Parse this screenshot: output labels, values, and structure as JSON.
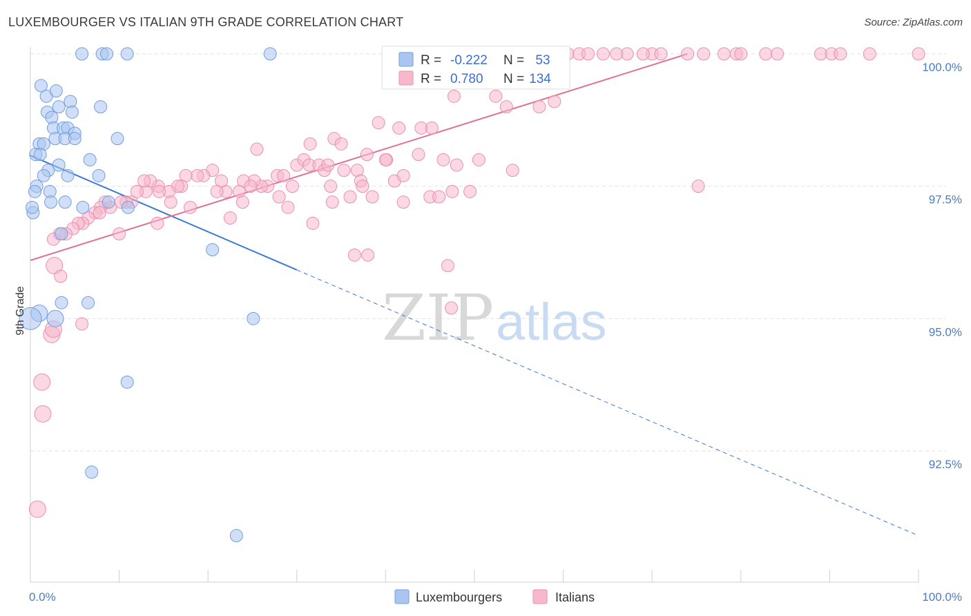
{
  "title": "LUXEMBOURGER VS ITALIAN 9TH GRADE CORRELATION CHART",
  "source": "Source: ZipAtlas.com",
  "watermark": {
    "zip": "ZIP",
    "atlas": "atlas"
  },
  "colors": {
    "luxembourgers_fill": "#a9c5f0",
    "luxembourgers_stroke": "#6f9ee0",
    "luxembourgers_line": "#3b78d6",
    "italians_fill": "#f7b8cc",
    "italians_stroke": "#eb8fae",
    "italians_line": "#e0709a",
    "tick_label": "#4a7cc7"
  },
  "stats_legend": {
    "r_label": "R =",
    "n_label": "N =",
    "rows": [
      {
        "series": "Luxembourgers",
        "r": "-0.222",
        "n": "53"
      },
      {
        "series": "Italians",
        "r": "0.780",
        "n": "134"
      }
    ]
  },
  "chart_data": {
    "type": "scatter",
    "title": "LUXEMBOURGER VS ITALIAN 9TH GRADE CORRELATION CHART",
    "xlabel": "",
    "ylabel": "9th Grade",
    "xlim": [
      0,
      100
    ],
    "ylim": [
      90.7,
      100.2
    ],
    "x_tick_labels": [
      "0.0%",
      "100.0%"
    ],
    "y_ticks": [
      92.5,
      95.0,
      97.5,
      100.0
    ],
    "y_tick_labels": [
      "92.5%",
      "95.0%",
      "97.5%",
      "100.0%"
    ],
    "grid": "horizontal dashed",
    "legend_placement": "bottom",
    "series": [
      {
        "name": "Luxembourgers",
        "points": [
          [
            5.8,
            100.0
          ],
          [
            8.1,
            100.0
          ],
          [
            8.6,
            100.0
          ],
          [
            10.9,
            100.0
          ],
          [
            27.0,
            100.0
          ],
          [
            1.2,
            99.4
          ],
          [
            1.8,
            99.2
          ],
          [
            3.2,
            99.0
          ],
          [
            4.5,
            99.1
          ],
          [
            4.7,
            98.9
          ],
          [
            1.9,
            98.9
          ],
          [
            2.4,
            98.8
          ],
          [
            2.6,
            98.6
          ],
          [
            3.7,
            98.6
          ],
          [
            4.2,
            98.6
          ],
          [
            5.0,
            98.5
          ],
          [
            1.0,
            98.3
          ],
          [
            1.5,
            98.3
          ],
          [
            2.8,
            98.4
          ],
          [
            3.9,
            98.4
          ],
          [
            5.0,
            98.4
          ],
          [
            7.9,
            99.0
          ],
          [
            9.8,
            98.4
          ],
          [
            0.6,
            98.1
          ],
          [
            1.1,
            98.1
          ],
          [
            6.7,
            98.0
          ],
          [
            3.2,
            97.9
          ],
          [
            2.0,
            97.8
          ],
          [
            1.5,
            97.7
          ],
          [
            4.2,
            97.7
          ],
          [
            7.7,
            97.7
          ],
          [
            0.7,
            97.5
          ],
          [
            2.2,
            97.4
          ],
          [
            0.5,
            97.4
          ],
          [
            3.9,
            97.2
          ],
          [
            2.3,
            97.2
          ],
          [
            5.9,
            97.1
          ],
          [
            0.3,
            97.0
          ],
          [
            0.2,
            97.1
          ],
          [
            8.8,
            97.2
          ],
          [
            3.5,
            96.6
          ],
          [
            20.5,
            96.3
          ],
          [
            3.5,
            95.3
          ],
          [
            6.5,
            95.3
          ],
          [
            1.0,
            95.1
          ],
          [
            0.0,
            95.0
          ],
          [
            2.8,
            95.0
          ],
          [
            25.1,
            95.0
          ],
          [
            10.9,
            93.8
          ],
          [
            6.9,
            92.1
          ],
          [
            23.2,
            90.9
          ],
          [
            11.0,
            97.1
          ],
          [
            2.9,
            99.3
          ]
        ]
      },
      {
        "name": "Italians",
        "points": [
          [
            43.5,
            100.0
          ],
          [
            49.2,
            100.0
          ],
          [
            50.0,
            100.0
          ],
          [
            53.2,
            100.0
          ],
          [
            55.3,
            100.0
          ],
          [
            58.3,
            100.0
          ],
          [
            59.2,
            100.0
          ],
          [
            60.5,
            100.0
          ],
          [
            61.8,
            100.0
          ],
          [
            64.5,
            100.0
          ],
          [
            67.2,
            100.0
          ],
          [
            70.0,
            100.0
          ],
          [
            71.0,
            100.0
          ],
          [
            74.0,
            100.0
          ],
          [
            75.8,
            100.0
          ],
          [
            78.1,
            100.0
          ],
          [
            79.5,
            100.0
          ],
          [
            80.0,
            100.0
          ],
          [
            82.8,
            100.0
          ],
          [
            84.1,
            100.0
          ],
          [
            89.0,
            100.0
          ],
          [
            90.2,
            100.0
          ],
          [
            91.2,
            100.0
          ],
          [
            94.5,
            100.0
          ],
          [
            100.0,
            100.0
          ],
          [
            50.5,
            100.0
          ],
          [
            56.2,
            100.0
          ],
          [
            62.8,
            100.0
          ],
          [
            66.0,
            100.0
          ],
          [
            69.0,
            100.0
          ],
          [
            47.7,
            99.2
          ],
          [
            52.4,
            99.2
          ],
          [
            53.6,
            99.0
          ],
          [
            59.0,
            99.1
          ],
          [
            57.3,
            99.0
          ],
          [
            39.2,
            98.7
          ],
          [
            41.5,
            98.6
          ],
          [
            44.0,
            98.6
          ],
          [
            45.2,
            98.6
          ],
          [
            34.2,
            98.4
          ],
          [
            35.0,
            98.3
          ],
          [
            31.5,
            98.3
          ],
          [
            25.5,
            98.2
          ],
          [
            37.9,
            98.1
          ],
          [
            40.1,
            98.0
          ],
          [
            43.7,
            98.1
          ],
          [
            46.5,
            98.0
          ],
          [
            48.0,
            97.9
          ],
          [
            54.3,
            97.8
          ],
          [
            75.2,
            97.5
          ],
          [
            30.0,
            97.9
          ],
          [
            30.8,
            98.0
          ],
          [
            31.4,
            97.9
          ],
          [
            32.5,
            97.9
          ],
          [
            33.1,
            97.8
          ],
          [
            33.8,
            97.5
          ],
          [
            35.3,
            97.8
          ],
          [
            36.8,
            97.8
          ],
          [
            37.2,
            97.6
          ],
          [
            41.0,
            97.6
          ],
          [
            42.0,
            97.7
          ],
          [
            27.8,
            97.7
          ],
          [
            28.5,
            97.7
          ],
          [
            26.7,
            97.5
          ],
          [
            26.0,
            97.5
          ],
          [
            25.2,
            97.6
          ],
          [
            24.0,
            97.6
          ],
          [
            23.5,
            97.4
          ],
          [
            22.0,
            97.4
          ],
          [
            20.5,
            97.8
          ],
          [
            21.5,
            97.6
          ],
          [
            19.5,
            97.7
          ],
          [
            18.8,
            97.7
          ],
          [
            17.5,
            97.7
          ],
          [
            17.0,
            97.5
          ],
          [
            16.6,
            97.5
          ],
          [
            15.6,
            97.4
          ],
          [
            14.4,
            97.5
          ],
          [
            14.5,
            97.4
          ],
          [
            13.5,
            97.6
          ],
          [
            13.0,
            97.4
          ],
          [
            12.8,
            97.6
          ],
          [
            12.0,
            97.4
          ],
          [
            11.4,
            97.2
          ],
          [
            10.8,
            97.2
          ],
          [
            10.2,
            97.2
          ],
          [
            9.0,
            97.1
          ],
          [
            8.4,
            97.2
          ],
          [
            7.9,
            97.1
          ],
          [
            7.3,
            97.0
          ],
          [
            6.5,
            96.9
          ],
          [
            5.9,
            96.8
          ],
          [
            5.4,
            96.8
          ],
          [
            4.8,
            96.7
          ],
          [
            4.0,
            96.6
          ],
          [
            3.3,
            96.6
          ],
          [
            2.6,
            96.5
          ],
          [
            7.8,
            97.0
          ],
          [
            10.0,
            96.6
          ],
          [
            14.3,
            96.8
          ],
          [
            15.8,
            97.2
          ],
          [
            18.0,
            97.1
          ],
          [
            21.0,
            97.4
          ],
          [
            22.5,
            96.9
          ],
          [
            23.9,
            97.2
          ],
          [
            24.8,
            97.5
          ],
          [
            28.0,
            97.3
          ],
          [
            29.0,
            97.1
          ],
          [
            31.8,
            96.8
          ],
          [
            34.0,
            97.2
          ],
          [
            36.0,
            97.3
          ],
          [
            38.5,
            97.3
          ],
          [
            42.0,
            97.2
          ],
          [
            45.0,
            97.3
          ],
          [
            46.0,
            97.3
          ],
          [
            47.5,
            97.4
          ],
          [
            49.5,
            97.4
          ],
          [
            50.5,
            98.0
          ],
          [
            36.5,
            96.2
          ],
          [
            38.0,
            96.2
          ],
          [
            47.0,
            96.0
          ],
          [
            2.7,
            96.0
          ],
          [
            3.4,
            95.8
          ],
          [
            5.8,
            94.9
          ],
          [
            2.4,
            94.7
          ],
          [
            2.6,
            94.8
          ],
          [
            1.3,
            93.8
          ],
          [
            1.4,
            93.2
          ],
          [
            0.8,
            91.4
          ],
          [
            47.4,
            95.2
          ],
          [
            37.4,
            97.5
          ],
          [
            40.0,
            98.0
          ],
          [
            33.5,
            97.9
          ],
          [
            29.5,
            97.5
          ]
        ]
      }
    ],
    "trend_lines": [
      {
        "series": "Luxembourgers",
        "solid": [
          [
            0,
            98.08
          ],
          [
            30,
            95.92
          ]
        ],
        "dashed": [
          [
            30,
            95.92
          ],
          [
            100,
            90.9
          ]
        ]
      },
      {
        "series": "Italians",
        "solid": [
          [
            0,
            96.1
          ],
          [
            74,
            100.0
          ]
        ]
      }
    ]
  }
}
